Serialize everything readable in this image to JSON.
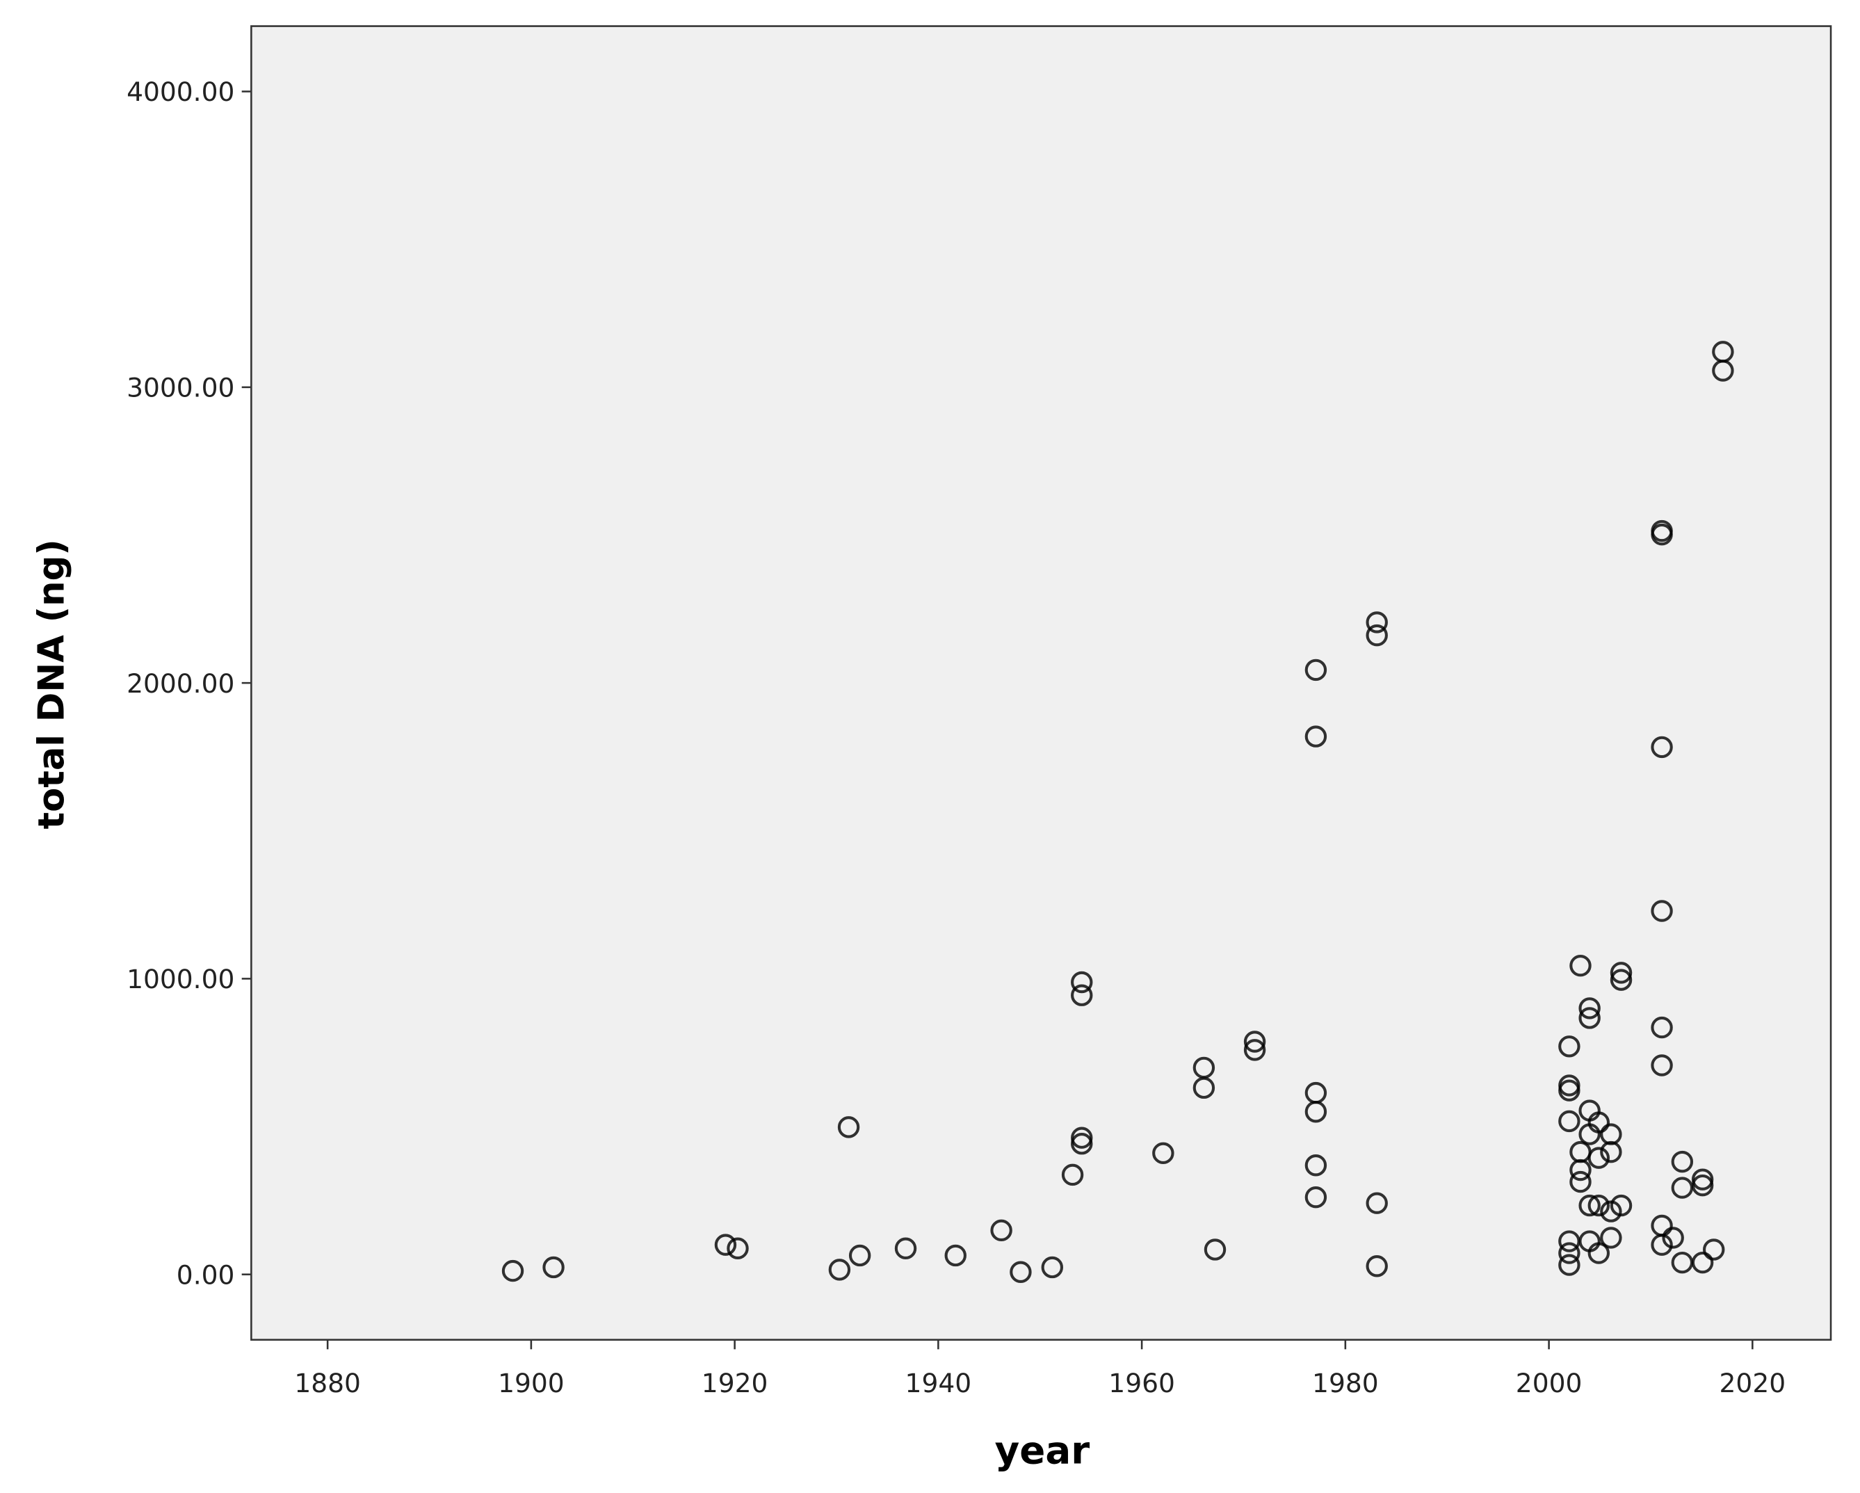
{
  "chart_data": {
    "type": "scatter",
    "x_label": "year",
    "y_label": "total DNA (ng)",
    "xlim": [
      1872.5,
      2027.7
    ],
    "ylim": [
      -221,
      4221
    ],
    "xticks": [
      1880,
      1900,
      1920,
      1940,
      1960,
      1980,
      2000,
      2020
    ],
    "yticks": [
      {
        "value": 0,
        "label": "0.00"
      },
      {
        "value": 1000,
        "label": "1000.00"
      },
      {
        "value": 2000,
        "label": "2000.00"
      },
      {
        "value": 3000,
        "label": "3000.00"
      },
      {
        "value": 4000,
        "label": "4000.00"
      }
    ],
    "color": "#000000",
    "background": "#f0f0f0",
    "x": [
      1898.2,
      1902.2,
      1919.1,
      1920.3,
      1930.3,
      1932.3,
      1931.2,
      1936.8,
      1941.7,
      1946.2,
      1948.1,
      1951.2,
      1953.2,
      1954.1,
      1954.1,
      1954.1,
      1954.1,
      1962.1,
      1966.1,
      1966.1,
      1967.2,
      1971.1,
      1971.1,
      1977.1,
      1977.1,
      1977.1,
      1977.1,
      1977.1,
      1977.1,
      1983.1,
      1983.1,
      1983.1,
      1983.1,
      2002.0,
      2002.0,
      2002.0,
      2002.0,
      2002.0,
      2002.0,
      2002.0,
      2003.1,
      2003.1,
      2003.1,
      2003.1,
      2004.0,
      2004.0,
      2004.0,
      2004.0,
      2004.0,
      2004.0,
      2004.9,
      2004.9,
      2004.9,
      2004.9,
      2006.1,
      2006.1,
      2006.1,
      2006.1,
      2007.1,
      2007.1,
      2007.1,
      2011.1,
      2011.1,
      2011.1,
      2011.1,
      2011.1,
      2011.1,
      2011.1,
      2011.1,
      2012.2,
      2013.1,
      2013.1,
      2013.1,
      2015.1,
      2015.1,
      2015.1,
      2016.2,
      2017.1,
      2017.1
    ],
    "values": [
      12,
      24,
      100,
      88,
      16,
      64,
      498,
      88,
      64,
      149,
      8,
      24,
      337,
      988,
      944,
      462,
      442,
      410,
      699,
      631,
      84,
      787,
      759,
      2044,
      1819,
      614,
      550,
      369,
      261,
      2205,
      2161,
      241,
      28,
      771,
      639,
      622,
      518,
      112,
      72,
      32,
      1044,
      414,
      313,
      353,
      900,
      867,
      554,
      474,
      233,
      112,
      514,
      394,
      233,
      72,
      474,
      414,
      213,
      124,
      233,
      1020,
      996,
      2514,
      2502,
      1783,
      1229,
      835,
      707,
      165,
      100,
      124,
      381,
      293,
      40,
      321,
      301,
      40,
      84,
      3120,
      3056
    ]
  }
}
